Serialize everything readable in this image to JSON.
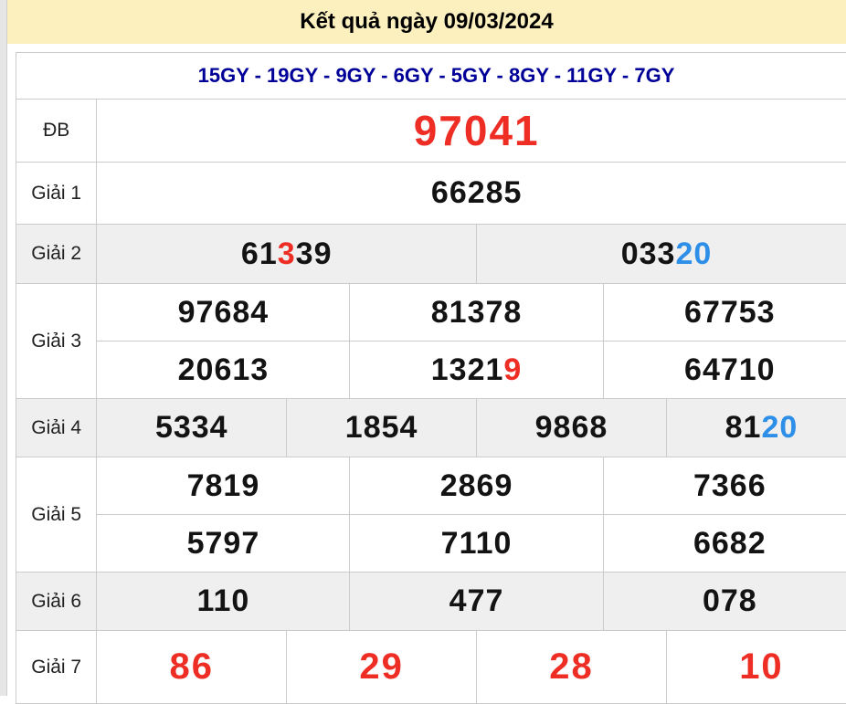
{
  "header": {
    "title": "Kết quả ngày 09/03/2024"
  },
  "subheader": {
    "text": "15GY - 19GY - 9GY - 6GY - 5GY - 8GY - 11GY - 7GY",
    "codes": [
      "15GY",
      "19GY",
      "9GY",
      "6GY",
      "5GY",
      "8GY",
      "11GY",
      "7GY"
    ]
  },
  "colors": {
    "header_bg": "#FCF0BE",
    "subheader_text": "#000099",
    "highlight_red": "#EE2E24",
    "highlight_blue": "#2D8FE8",
    "row_shade": "#EFEFEF",
    "border": "#CBCBCB"
  },
  "prizes": [
    {
      "label": "ĐB",
      "lines": [
        [
          [
            {
              "t": "97041",
              "c": "red"
            }
          ]
        ]
      ]
    },
    {
      "label": "Giải 1",
      "lines": [
        [
          [
            {
              "t": "66285"
            }
          ]
        ]
      ]
    },
    {
      "label": "Giải 2",
      "lines": [
        [
          [
            {
              "t": "61"
            },
            {
              "t": "3",
              "c": "red"
            },
            {
              "t": "39"
            }
          ],
          [
            {
              "t": "033"
            },
            {
              "t": "20",
              "c": "blue"
            }
          ]
        ]
      ]
    },
    {
      "label": "Giải 3",
      "lines": [
        [
          [
            {
              "t": "97684"
            }
          ],
          [
            {
              "t": "81378"
            }
          ],
          [
            {
              "t": "67753"
            }
          ]
        ],
        [
          [
            {
              "t": "20613"
            }
          ],
          [
            {
              "t": "1321"
            },
            {
              "t": "9",
              "c": "red"
            }
          ],
          [
            {
              "t": "64710"
            }
          ]
        ]
      ]
    },
    {
      "label": "Giải 4",
      "lines": [
        [
          [
            {
              "t": "5334"
            }
          ],
          [
            {
              "t": "1854"
            }
          ],
          [
            {
              "t": "9868"
            }
          ],
          [
            {
              "t": "81"
            },
            {
              "t": "20",
              "c": "blue"
            }
          ]
        ]
      ]
    },
    {
      "label": "Giải 5",
      "lines": [
        [
          [
            {
              "t": "7819"
            }
          ],
          [
            {
              "t": "2869"
            }
          ],
          [
            {
              "t": "7366"
            }
          ]
        ],
        [
          [
            {
              "t": "5797"
            }
          ],
          [
            {
              "t": "7110"
            }
          ],
          [
            {
              "t": "6682"
            }
          ]
        ]
      ]
    },
    {
      "label": "Giải 6",
      "lines": [
        [
          [
            {
              "t": "110"
            }
          ],
          [
            {
              "t": "477"
            }
          ],
          [
            {
              "t": "078"
            }
          ]
        ]
      ]
    },
    {
      "label": "Giải 7",
      "lines": [
        [
          [
            {
              "t": "86",
              "c": "red"
            }
          ],
          [
            {
              "t": "29",
              "c": "red"
            }
          ],
          [
            {
              "t": "28",
              "c": "red"
            }
          ],
          [
            {
              "t": "10",
              "c": "red"
            }
          ]
        ]
      ]
    }
  ]
}
